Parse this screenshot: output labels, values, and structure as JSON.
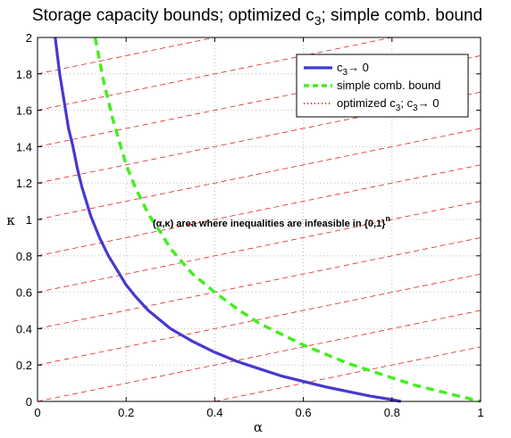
{
  "chart_data": {
    "type": "line",
    "title": "Storage capacity bounds; optimized c",
    "title_sub": "3",
    "title_tail": "; simple comb. bound",
    "xlabel": "α",
    "ylabel": "κ",
    "xlim": [
      0,
      1
    ],
    "ylim": [
      0,
      2
    ],
    "x_ticks": [
      "0",
      "0.2",
      "0.4",
      "0.6",
      "0.8",
      "1"
    ],
    "y_ticks": [
      "0",
      "0.2",
      "0.4",
      "0.6",
      "0.8",
      "1",
      "1.2",
      "1.4",
      "1.6",
      "1.8",
      "2"
    ],
    "grid": true,
    "legend_position": "top-right",
    "series": [
      {
        "legend": {
          "pre": "c",
          "sub": "3",
          "post": "→ 0"
        },
        "style": "solid",
        "color": "#3a3ae0",
        "points": [
          [
            0.04,
            2.0
          ],
          [
            0.05,
            1.8
          ],
          [
            0.06,
            1.65
          ],
          [
            0.07,
            1.5
          ],
          [
            0.08,
            1.4
          ],
          [
            0.09,
            1.28
          ],
          [
            0.1,
            1.18
          ],
          [
            0.12,
            1.02
          ],
          [
            0.14,
            0.9
          ],
          [
            0.16,
            0.8
          ],
          [
            0.18,
            0.72
          ],
          [
            0.2,
            0.64
          ],
          [
            0.22,
            0.58
          ],
          [
            0.25,
            0.5
          ],
          [
            0.28,
            0.44
          ],
          [
            0.3,
            0.4
          ],
          [
            0.35,
            0.33
          ],
          [
            0.4,
            0.27
          ],
          [
            0.45,
            0.22
          ],
          [
            0.5,
            0.18
          ],
          [
            0.55,
            0.14
          ],
          [
            0.6,
            0.11
          ],
          [
            0.65,
            0.08
          ],
          [
            0.7,
            0.055
          ],
          [
            0.75,
            0.03
          ],
          [
            0.8,
            0.01
          ],
          [
            0.82,
            0.0
          ]
        ]
      },
      {
        "legend": {
          "pre": "simple comb. bound",
          "sub": "",
          "post": ""
        },
        "style": "dashed",
        "color": "#44ee22",
        "points": [
          [
            0.13,
            2.0
          ],
          [
            0.15,
            1.75
          ],
          [
            0.17,
            1.55
          ],
          [
            0.2,
            1.3
          ],
          [
            0.22,
            1.18
          ],
          [
            0.25,
            1.03
          ],
          [
            0.28,
            0.92
          ],
          [
            0.3,
            0.84
          ],
          [
            0.35,
            0.7
          ],
          [
            0.4,
            0.6
          ],
          [
            0.45,
            0.51
          ],
          [
            0.5,
            0.43
          ],
          [
            0.55,
            0.37
          ],
          [
            0.6,
            0.31
          ],
          [
            0.65,
            0.26
          ],
          [
            0.7,
            0.21
          ],
          [
            0.75,
            0.17
          ],
          [
            0.8,
            0.13
          ],
          [
            0.85,
            0.09
          ],
          [
            0.9,
            0.06
          ],
          [
            0.95,
            0.03
          ],
          [
            1.0,
            0.0
          ]
        ]
      },
      {
        "legend": {
          "pre": "optimized c",
          "sub": "3",
          "post": "; c",
          "sub2": "3",
          "post2": "→ 0"
        },
        "style": "dotted",
        "color": "#e02020",
        "points": [
          [
            0.04,
            2.0
          ],
          [
            0.05,
            1.8
          ],
          [
            0.06,
            1.65
          ],
          [
            0.07,
            1.5
          ],
          [
            0.08,
            1.4
          ],
          [
            0.09,
            1.28
          ],
          [
            0.1,
            1.18
          ],
          [
            0.12,
            1.02
          ],
          [
            0.14,
            0.9
          ],
          [
            0.16,
            0.8
          ],
          [
            0.18,
            0.72
          ],
          [
            0.2,
            0.64
          ],
          [
            0.22,
            0.58
          ],
          [
            0.25,
            0.5
          ],
          [
            0.28,
            0.44
          ],
          [
            0.3,
            0.4
          ],
          [
            0.35,
            0.33
          ],
          [
            0.4,
            0.27
          ],
          [
            0.45,
            0.22
          ],
          [
            0.5,
            0.18
          ],
          [
            0.55,
            0.14
          ],
          [
            0.6,
            0.11
          ],
          [
            0.65,
            0.08
          ],
          [
            0.7,
            0.055
          ],
          [
            0.75,
            0.03
          ],
          [
            0.8,
            0.01
          ],
          [
            0.82,
            0.0
          ]
        ]
      }
    ],
    "hatch": {
      "color": "#e02020",
      "slope": 0.5,
      "intercepts": [
        1.8,
        1.6,
        1.4,
        1.2,
        1.0,
        0.8,
        0.6,
        0.4,
        0.2,
        0.0,
        -0.2
      ]
    },
    "annotation": {
      "text": "(α,κ) area where inequalities are infeasible in {0,1}",
      "sup": "n",
      "x": 0.26,
      "y": 0.96
    }
  }
}
